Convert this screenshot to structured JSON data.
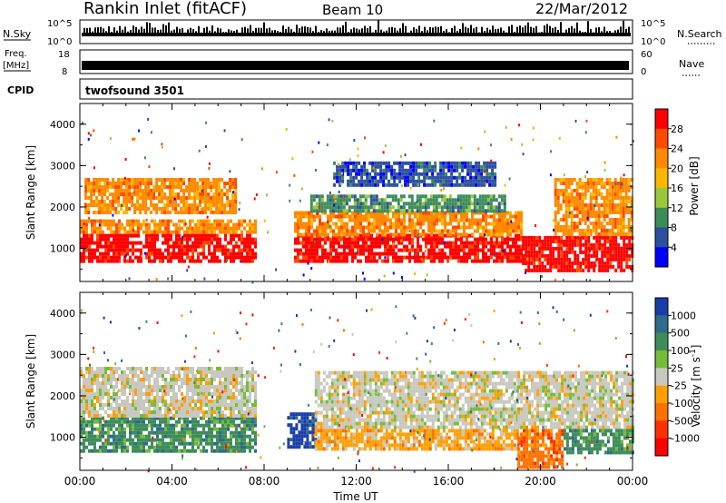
{
  "header": {
    "station": "Rankin Inlet (fitACF)",
    "beam": "Beam 10",
    "date": "22/Mar/2012"
  },
  "labels": {
    "nsky": "N.Sky",
    "nsearch": "N.Search",
    "freq_line1": "Freq.",
    "freq_line2": "[MHz]",
    "nave": "Nave",
    "cpid": "CPID",
    "cpid_value": "twofsound 3501",
    "noise_ticks_left": [
      "10^5",
      "10^0"
    ],
    "noise_ticks_right": [
      "10^5",
      "10^0"
    ],
    "freq_ticks": [
      "18",
      "8"
    ],
    "nave_ticks": [
      "60",
      "0"
    ]
  },
  "chart_data": [
    {
      "type": "heatmap",
      "panel": "power",
      "ylabel": "Slant Range [km]",
      "ylim": [
        200,
        4500
      ],
      "yticks": [
        "1000",
        "2000",
        "3000",
        "4000"
      ],
      "xlim": [
        "00:00",
        "24:00"
      ],
      "colorbar": {
        "label": "Power [dB]",
        "tick_labels": [
          "28",
          "24",
          "20",
          "16",
          "12",
          "8",
          "4"
        ],
        "colors": [
          "#ff0000",
          "#ff4a00",
          "#ff8a00",
          "#f9b800",
          "#9ac83a",
          "#3c8c5a",
          "#2d4fa0",
          "#0000ff"
        ]
      },
      "bands": [
        {
          "t_start": 0.0,
          "t_end": 7.6,
          "range_lo": 650,
          "range_hi": 1350,
          "level": 0
        },
        {
          "t_start": 0.0,
          "t_end": 7.6,
          "range_lo": 1350,
          "range_hi": 1700,
          "level": 2
        },
        {
          "t_start": 0.2,
          "t_end": 6.8,
          "range_lo": 1900,
          "range_hi": 2700,
          "level": 2
        },
        {
          "t_start": 9.3,
          "t_end": 19.2,
          "range_lo": 700,
          "range_hi": 1350,
          "level": 0
        },
        {
          "t_start": 9.3,
          "t_end": 19.2,
          "range_lo": 1350,
          "range_hi": 1900,
          "level": 2
        },
        {
          "t_start": 10.0,
          "t_end": 18.5,
          "range_lo": 1900,
          "range_hi": 2300,
          "level": 5
        },
        {
          "t_start": 11.0,
          "t_end": 18.0,
          "range_lo": 2500,
          "range_hi": 3100,
          "level": 6
        },
        {
          "t_start": 19.2,
          "t_end": 24.0,
          "range_lo": 500,
          "range_hi": 1300,
          "level": 0
        },
        {
          "t_start": 20.6,
          "t_end": 24.0,
          "range_lo": 1300,
          "range_hi": 2700,
          "level": 2
        }
      ]
    },
    {
      "type": "heatmap",
      "panel": "velocity",
      "ylabel": "Slant Range [km]",
      "ylim": [
        200,
        4500
      ],
      "yticks": [
        "1000",
        "2000",
        "3000",
        "4000"
      ],
      "xlim": [
        "00:00",
        "24:00"
      ],
      "xticks": [
        "00:00",
        "04:00",
        "08:00",
        "12:00",
        "16:00",
        "20:00",
        "00:00"
      ],
      "xlabel": "Time UT",
      "colorbar": {
        "label": "Velocity [m s^-1]",
        "tick_labels": [
          "1000",
          "500",
          "100",
          "25",
          "-25",
          "-100",
          "-500",
          "-1000"
        ],
        "colors": [
          "#1a3ea8",
          "#2f6b8a",
          "#3e8c5a",
          "#74bc3a",
          "#c8c8c0",
          "#ffa000",
          "#ff7000",
          "#ff3000",
          "#ff0000"
        ]
      },
      "bands": [
        {
          "t_start": 0.0,
          "t_end": 7.6,
          "range_lo": 650,
          "range_hi": 1500,
          "level": 2
        },
        {
          "t_start": 0.0,
          "t_end": 7.6,
          "range_lo": 1500,
          "range_hi": 2700,
          "level": 4
        },
        {
          "t_start": 9.0,
          "t_end": 10.2,
          "range_lo": 800,
          "range_hi": 1600,
          "level": 0
        },
        {
          "t_start": 10.2,
          "t_end": 19.0,
          "range_lo": 700,
          "range_hi": 1200,
          "level": 5
        },
        {
          "t_start": 10.2,
          "t_end": 19.0,
          "range_lo": 1200,
          "range_hi": 2600,
          "level": 4
        },
        {
          "t_start": 19.0,
          "t_end": 21.0,
          "range_lo": 250,
          "range_hi": 1200,
          "level": 6
        },
        {
          "t_start": 19.0,
          "t_end": 24.0,
          "range_lo": 1200,
          "range_hi": 2600,
          "level": 4
        },
        {
          "t_start": 21.0,
          "t_end": 24.0,
          "range_lo": 600,
          "range_hi": 1200,
          "level": 2
        }
      ]
    }
  ]
}
